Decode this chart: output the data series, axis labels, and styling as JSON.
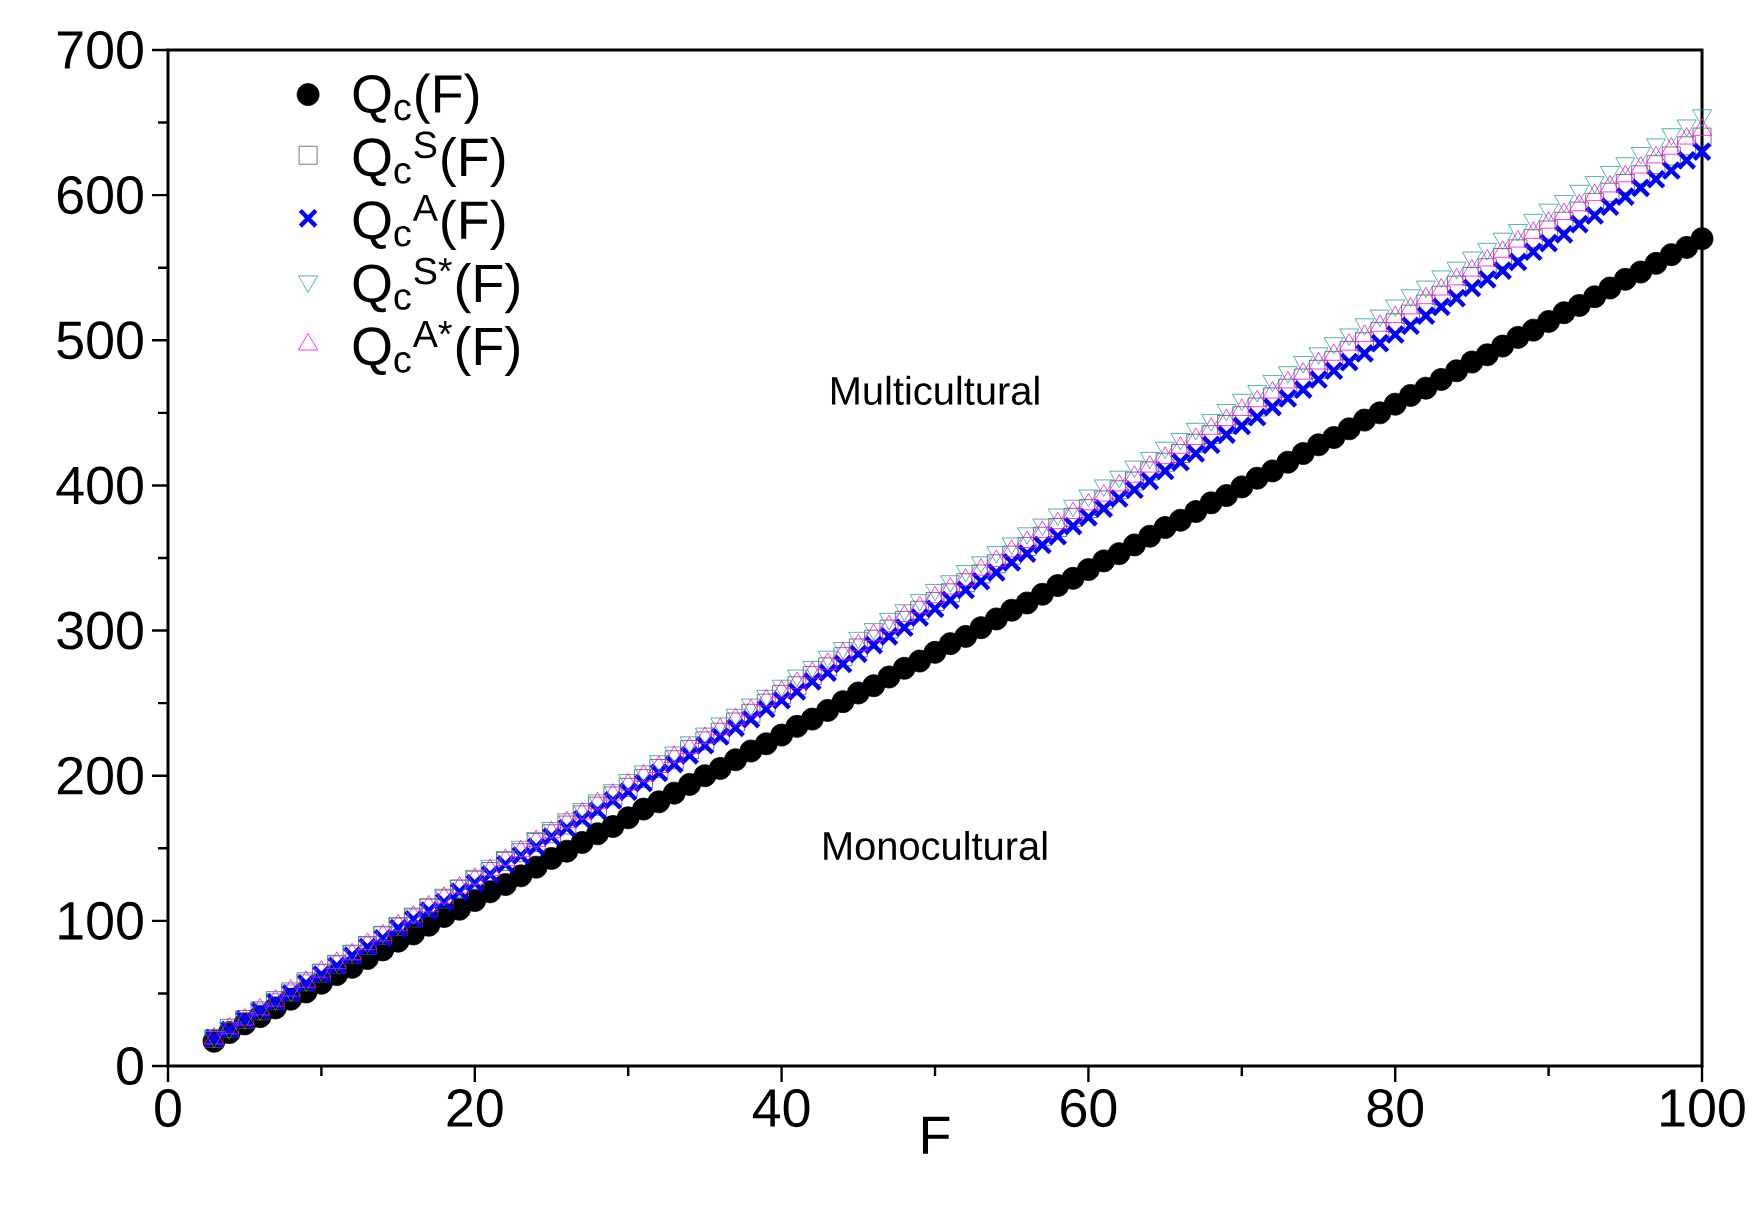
{
  "chart_data": {
    "type": "scatter",
    "xlabel": "F",
    "annotations": [
      "Multicultural",
      "Monocultural"
    ],
    "xlim": [
      0,
      100
    ],
    "xticks": [
      0,
      20,
      40,
      60,
      80,
      100
    ],
    "ylim": [
      0,
      700
    ],
    "yticks": [
      0,
      100,
      200,
      300,
      400,
      500,
      600,
      700
    ],
    "legend": "top left",
    "x": [
      3,
      4,
      5,
      6,
      7,
      8,
      9,
      10,
      11,
      12,
      13,
      14,
      15,
      16,
      17,
      18,
      19,
      20,
      21,
      22,
      23,
      24,
      25,
      26,
      27,
      28,
      29,
      30,
      31,
      32,
      33,
      34,
      35,
      36,
      37,
      38,
      39,
      40,
      41,
      42,
      43,
      44,
      45,
      46,
      47,
      48,
      49,
      50,
      51,
      52,
      53,
      54,
      55,
      56,
      57,
      58,
      59,
      60,
      61,
      62,
      63,
      64,
      65,
      66,
      67,
      68,
      69,
      70,
      71,
      72,
      73,
      74,
      75,
      76,
      77,
      78,
      79,
      80,
      81,
      82,
      83,
      84,
      85,
      86,
      87,
      88,
      89,
      90,
      91,
      92,
      93,
      94,
      95,
      96,
      97,
      98,
      99,
      100
    ],
    "series": [
      {
        "name": "Q$_{c}$(F)",
        "color": "#000000",
        "marker": "circle",
        "values": [
          17,
          23,
          29,
          34,
          40,
          46,
          51,
          57,
          63,
          68,
          74,
          80,
          86,
          91,
          97,
          103,
          108,
          114,
          120,
          125,
          131,
          137,
          143,
          148,
          154,
          160,
          165,
          171,
          177,
          182,
          188,
          194,
          200,
          205,
          211,
          217,
          222,
          228,
          234,
          239,
          245,
          251,
          257,
          262,
          268,
          274,
          279,
          285,
          291,
          296,
          302,
          308,
          314,
          319,
          325,
          331,
          336,
          342,
          348,
          353,
          359,
          365,
          371,
          376,
          382,
          388,
          393,
          399,
          405,
          410,
          416,
          422,
          428,
          433,
          439,
          445,
          450,
          456,
          462,
          467,
          473,
          479,
          485,
          490,
          496,
          502,
          507,
          513,
          519,
          524,
          530,
          536,
          542,
          547,
          553,
          559,
          564,
          570
        ]
      },
      {
        "name": "Q$_{c}$$^{S}$(F)",
        "color": "#555555",
        "marker": "square",
        "values": [
          19,
          26,
          32,
          38,
          45,
          51,
          58,
          64,
          70,
          77,
          83,
          90,
          96,
          102,
          109,
          115,
          122,
          128,
          134,
          141,
          147,
          154,
          160,
          166,
          173,
          179,
          186,
          192,
          198,
          205,
          211,
          218,
          224,
          230,
          237,
          243,
          250,
          256,
          262,
          269,
          275,
          282,
          288,
          294,
          301,
          307,
          314,
          320,
          326,
          333,
          339,
          346,
          352,
          358,
          365,
          371,
          378,
          384,
          390,
          397,
          403,
          410,
          416,
          422,
          429,
          435,
          442,
          448,
          454,
          461,
          467,
          474,
          480,
          486,
          493,
          499,
          506,
          512,
          518,
          525,
          531,
          538,
          544,
          550,
          557,
          563,
          570,
          576,
          582,
          589,
          595,
          602,
          608,
          614,
          621,
          627,
          634,
          640
        ]
      },
      {
        "name": "Q$_{c}$$^{A}$(F)",
        "color": "#0000ff",
        "marker": "cross",
        "values": [
          19,
          25,
          32,
          38,
          44,
          50,
          57,
          63,
          69,
          76,
          82,
          88,
          95,
          101,
          107,
          113,
          120,
          126,
          132,
          139,
          145,
          151,
          158,
          164,
          170,
          176,
          183,
          189,
          195,
          202,
          208,
          214,
          221,
          227,
          233,
          239,
          246,
          252,
          258,
          265,
          271,
          277,
          284,
          290,
          296,
          302,
          309,
          315,
          321,
          328,
          334,
          340,
          347,
          353,
          359,
          365,
          372,
          378,
          384,
          391,
          397,
          403,
          410,
          416,
          422,
          428,
          435,
          441,
          447,
          454,
          460,
          466,
          473,
          479,
          485,
          491,
          498,
          504,
          510,
          517,
          523,
          529,
          536,
          542,
          548,
          554,
          561,
          567,
          573,
          580,
          586,
          592,
          599,
          605,
          611,
          617,
          624,
          630
        ]
      },
      {
        "name": "Q$_{c}$$^{S*}$(F)",
        "color": "#2a9d9d",
        "marker": "triangle-down",
        "values": [
          20,
          26,
          33,
          39,
          46,
          52,
          59,
          66,
          72,
          79,
          85,
          92,
          98,
          105,
          111,
          118,
          124,
          131,
          138,
          144,
          151,
          157,
          164,
          170,
          177,
          183,
          190,
          197,
          203,
          210,
          216,
          223,
          229,
          236,
          242,
          249,
          255,
          262,
          269,
          275,
          282,
          288,
          295,
          301,
          308,
          314,
          321,
          328,
          334,
          341,
          347,
          354,
          360,
          367,
          373,
          380,
          386,
          393,
          400,
          406,
          413,
          419,
          426,
          432,
          439,
          445,
          452,
          459,
          465,
          472,
          478,
          485,
          491,
          498,
          504,
          511,
          517,
          524,
          531,
          537,
          544,
          550,
          557,
          563,
          570,
          576,
          583,
          590,
          596,
          603,
          609,
          616,
          622,
          629,
          635,
          642,
          648,
          655
        ]
      },
      {
        "name": "Q$_{c}$$^{A*}$(F)",
        "color": "#ff00ff",
        "marker": "triangle",
        "values": [
          19,
          26,
          32,
          39,
          45,
          52,
          58,
          65,
          71,
          77,
          84,
          90,
          97,
          103,
          110,
          116,
          123,
          129,
          135,
          142,
          148,
          155,
          161,
          168,
          174,
          181,
          187,
          194,
          200,
          206,
          213,
          219,
          226,
          232,
          239,
          245,
          252,
          258,
          264,
          271,
          277,
          284,
          290,
          297,
          303,
          310,
          316,
          323,
          329,
          335,
          342,
          348,
          355,
          361,
          368,
          374,
          381,
          387,
          393,
          400,
          406,
          413,
          419,
          426,
          432,
          439,
          445,
          452,
          458,
          464,
          471,
          477,
          484,
          490,
          497,
          503,
          510,
          516,
          522,
          529,
          535,
          542,
          548,
          555,
          561,
          568,
          574,
          581,
          587,
          593,
          600,
          606,
          613,
          619,
          626,
          632,
          639,
          645
        ]
      }
    ]
  }
}
